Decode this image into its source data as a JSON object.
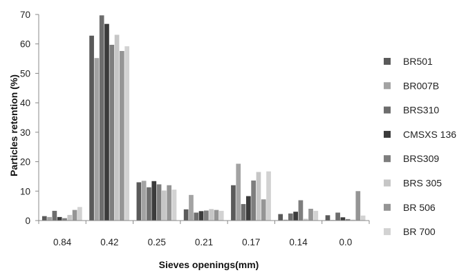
{
  "chart_data": {
    "type": "bar",
    "xlabel": "Sieves openings(mm)",
    "ylabel": "Particles retention  (%)",
    "ylim": [
      0,
      70
    ],
    "yticks": [
      0,
      10,
      20,
      30,
      40,
      50,
      60,
      70
    ],
    "grid": false,
    "legend_position": "right",
    "categories": [
      "0.84",
      "0.42",
      "0.25",
      "0.21",
      "0.17",
      "0.14",
      "0.0"
    ],
    "series": [
      {
        "name": "BR501",
        "color": "#5a5a5a",
        "values": [
          1.5,
          62.8,
          13.0,
          3.8,
          12.0,
          2.2,
          1.8
        ]
      },
      {
        "name": "BR007B",
        "color": "#a3a3a3",
        "values": [
          1.2,
          55.2,
          13.5,
          8.7,
          19.3,
          0.3,
          0.2
        ]
      },
      {
        "name": "BRS310",
        "color": "#6d6d6d",
        "values": [
          3.3,
          69.7,
          11.3,
          2.7,
          5.6,
          2.4,
          2.7
        ]
      },
      {
        "name": "CMSXS 136",
        "color": "#3b3b3b",
        "values": [
          1.2,
          66.8,
          13.4,
          3.2,
          8.3,
          3.0,
          1.1
        ]
      },
      {
        "name": "BRS309",
        "color": "#7e7e7e",
        "values": [
          0.8,
          59.7,
          12.3,
          3.4,
          13.6,
          6.9,
          0.5
        ]
      },
      {
        "name": "BRS 305",
        "color": "#c6c6c6",
        "values": [
          1.9,
          63.1,
          10.2,
          3.9,
          16.5,
          0.6,
          0.3
        ]
      },
      {
        "name": "BR 506",
        "color": "#959595",
        "values": [
          3.6,
          57.6,
          12.0,
          3.6,
          7.2,
          4.0,
          10.0
        ]
      },
      {
        "name": "BR 700",
        "color": "#d2d2d2",
        "values": [
          4.6,
          59.2,
          10.5,
          3.3,
          16.7,
          3.3,
          1.7
        ]
      }
    ]
  }
}
